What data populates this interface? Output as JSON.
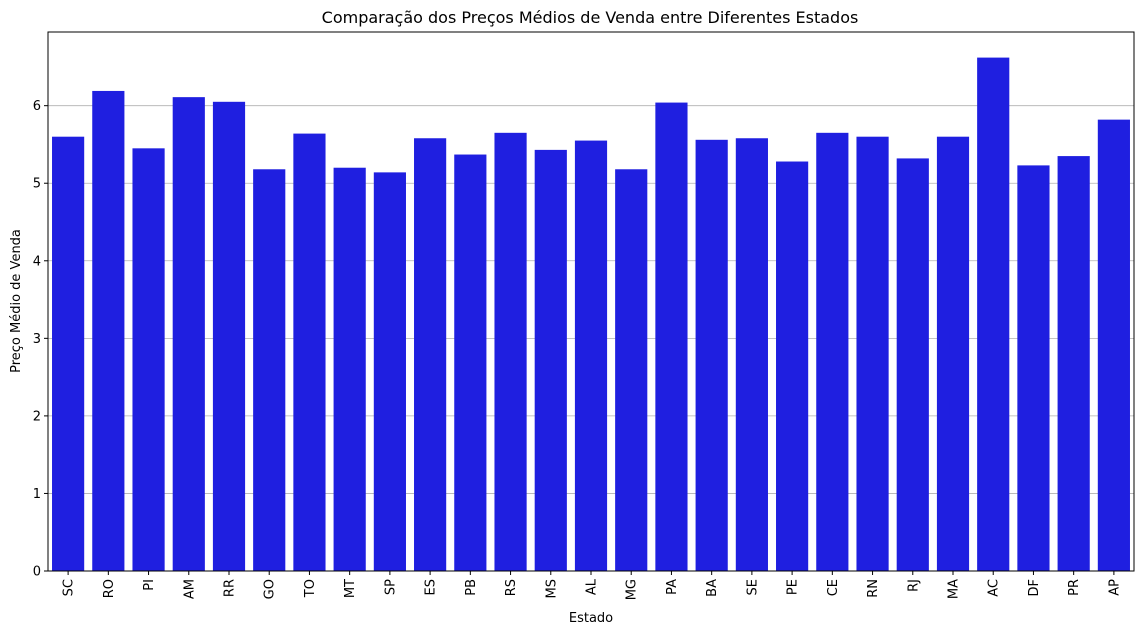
{
  "chart_data": {
    "type": "bar",
    "title": "Comparação dos Preços Médios de Venda entre Diferentes Estados",
    "xlabel": "Estado",
    "ylabel": "Preço Médio de Venda",
    "categories": [
      "SC",
      "RO",
      "PI",
      "AM",
      "RR",
      "GO",
      "TO",
      "MT",
      "SP",
      "ES",
      "PB",
      "RS",
      "MS",
      "AL",
      "MG",
      "PA",
      "BA",
      "SE",
      "PE",
      "CE",
      "RN",
      "RJ",
      "MA",
      "AC",
      "DF",
      "PR",
      "AP"
    ],
    "values": [
      5.6,
      6.19,
      5.45,
      6.11,
      6.05,
      5.18,
      5.64,
      5.2,
      5.14,
      5.58,
      5.37,
      5.65,
      5.43,
      5.55,
      5.18,
      6.04,
      5.56,
      5.58,
      5.28,
      5.65,
      5.6,
      5.32,
      5.6,
      6.62,
      5.23,
      5.35,
      5.82
    ],
    "ylim": [
      0,
      6.95
    ],
    "yticks": [
      0,
      1,
      2,
      3,
      4,
      5,
      6
    ],
    "grid": "y",
    "bar_color": "#1f1fe0"
  }
}
